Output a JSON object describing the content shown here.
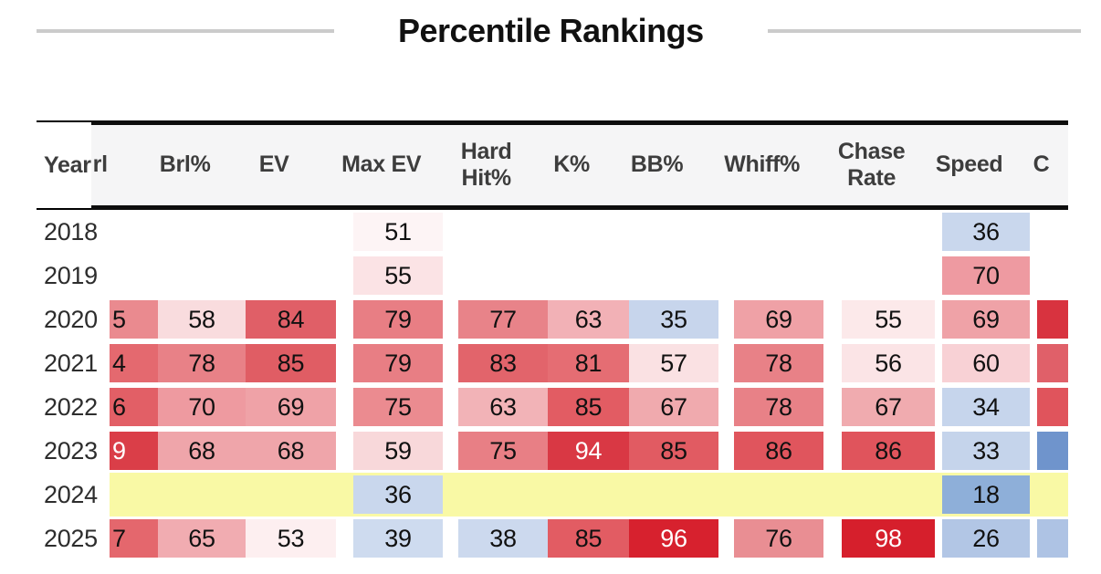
{
  "title": "Percentile Rankings",
  "colors": {
    "header_bg": "#f5f5f6",
    "border": "#0d0d0d",
    "highlight_row_bg": "#f9f9a5",
    "title_rule": "#cbcbcb"
  },
  "table": {
    "columns": [
      {
        "key": "year",
        "label": "Year"
      },
      {
        "key": "brl",
        "label": "rl"
      },
      {
        "key": "brl_pct",
        "label": "Brl%"
      },
      {
        "key": "ev",
        "label": "EV"
      },
      {
        "key": "max_ev",
        "label": "Max EV"
      },
      {
        "key": "hard_hit",
        "label": "Hard Hit%"
      },
      {
        "key": "k_pct",
        "label": "K%"
      },
      {
        "key": "bb_pct",
        "label": "BB%"
      },
      {
        "key": "whiff",
        "label": "Whiff%"
      },
      {
        "key": "chase",
        "label": "Chase Rate"
      },
      {
        "key": "speed",
        "label": "Speed"
      },
      {
        "key": "c",
        "label": "C"
      }
    ],
    "rows": [
      {
        "year": "2018",
        "highlight": false,
        "cells": {
          "max_ev": {
            "v": "51",
            "bg": "#fdf4f5"
          },
          "speed": {
            "v": "36",
            "bg": "#c9d7ed"
          }
        }
      },
      {
        "year": "2019",
        "highlight": false,
        "cells": {
          "max_ev": {
            "v": "55",
            "bg": "#fbe3e5"
          },
          "speed": {
            "v": "70",
            "bg": "#ee9aa1"
          }
        }
      },
      {
        "year": "2020",
        "highlight": false,
        "cells": {
          "brl": {
            "v": "5",
            "bg": "#ea8a8f"
          },
          "brl_pct": {
            "v": "58",
            "bg": "#f9dcde"
          },
          "ev": {
            "v": "84",
            "bg": "#e05f67"
          },
          "max_ev": {
            "v": "79",
            "bg": "#e87e84"
          },
          "hard_hit": {
            "v": "77",
            "bg": "#e88389"
          },
          "k_pct": {
            "v": "63",
            "bg": "#f2b1b6"
          },
          "bb_pct": {
            "v": "35",
            "bg": "#c7d5ec"
          },
          "whiff": {
            "v": "69",
            "bg": "#efa1a6"
          },
          "chase": {
            "v": "55",
            "bg": "#fce9ea"
          },
          "speed": {
            "v": "69",
            "bg": "#efa2a7"
          },
          "c": {
            "v": "",
            "bg": "#d8333f"
          }
        }
      },
      {
        "year": "2021",
        "highlight": false,
        "cells": {
          "brl": {
            "v": "4",
            "bg": "#e4696f"
          },
          "brl_pct": {
            "v": "78",
            "bg": "#e88187"
          },
          "ev": {
            "v": "85",
            "bg": "#e05d64"
          },
          "max_ev": {
            "v": "79",
            "bg": "#e87e84"
          },
          "hard_hit": {
            "v": "83",
            "bg": "#e2646b"
          },
          "k_pct": {
            "v": "81",
            "bg": "#e56d73"
          },
          "bb_pct": {
            "v": "57",
            "bg": "#fae1e3"
          },
          "whiff": {
            "v": "78",
            "bg": "#e88187"
          },
          "chase": {
            "v": "56",
            "bg": "#fbe4e6"
          },
          "speed": {
            "v": "60",
            "bg": "#f8d1d5"
          },
          "c": {
            "v": "",
            "bg": "#e06069"
          }
        }
      },
      {
        "year": "2022",
        "highlight": false,
        "cells": {
          "brl": {
            "v": "6",
            "bg": "#e25f66"
          },
          "brl_pct": {
            "v": "70",
            "bg": "#ee9aa0"
          },
          "ev": {
            "v": "69",
            "bg": "#efa2a7"
          },
          "max_ev": {
            "v": "75",
            "bg": "#eb8b90"
          },
          "hard_hit": {
            "v": "63",
            "bg": "#f2b3b7"
          },
          "k_pct": {
            "v": "85",
            "bg": "#e25c63"
          },
          "bb_pct": {
            "v": "67",
            "bg": "#f0aaae"
          },
          "whiff": {
            "v": "78",
            "bg": "#e88187"
          },
          "chase": {
            "v": "67",
            "bg": "#f0abaf"
          },
          "speed": {
            "v": "34",
            "bg": "#c6d5ec"
          },
          "c": {
            "v": "",
            "bg": "#e0545c"
          }
        }
      },
      {
        "year": "2023",
        "highlight": false,
        "cells": {
          "brl": {
            "v": "9",
            "bg": "#da3e48",
            "fg": "#ffffff"
          },
          "brl_pct": {
            "v": "68",
            "bg": "#efa5aa"
          },
          "ev": {
            "v": "68",
            "bg": "#efa5aa"
          },
          "max_ev": {
            "v": "59",
            "bg": "#f8d8da"
          },
          "hard_hit": {
            "v": "75",
            "bg": "#e87f85"
          },
          "k_pct": {
            "v": "94",
            "bg": "#d93844",
            "fg": "#ffffff"
          },
          "bb_pct": {
            "v": "85",
            "bg": "#e15b62"
          },
          "whiff": {
            "v": "86",
            "bg": "#e0555d"
          },
          "chase": {
            "v": "86",
            "bg": "#e0545c"
          },
          "speed": {
            "v": "33",
            "bg": "#c5d4eb"
          },
          "c": {
            "v": "",
            "bg": "#6f94cc"
          }
        }
      },
      {
        "year": "2024",
        "highlight": true,
        "cells": {
          "max_ev": {
            "v": "36",
            "bg": "#c9d7ed"
          },
          "speed": {
            "v": "18",
            "bg": "#8eafd9"
          }
        }
      },
      {
        "year": "2025",
        "highlight": false,
        "cells": {
          "brl": {
            "v": "7",
            "bg": "#e4676d"
          },
          "brl_pct": {
            "v": "65",
            "bg": "#f1acb1"
          },
          "ev": {
            "v": "53",
            "bg": "#fdeff0"
          },
          "max_ev": {
            "v": "39",
            "bg": "#cedbef"
          },
          "hard_hit": {
            "v": "38",
            "bg": "#ccd9ee"
          },
          "k_pct": {
            "v": "85",
            "bg": "#e25c63"
          },
          "bb_pct": {
            "v": "96",
            "bg": "#d7212e",
            "fg": "#ffffff"
          },
          "whiff": {
            "v": "76",
            "bg": "#e98e93"
          },
          "chase": {
            "v": "98",
            "bg": "#d61f2c",
            "fg": "#ffffff"
          },
          "speed": {
            "v": "26",
            "bg": "#b2c6e5"
          },
          "c": {
            "v": "",
            "bg": "#aec3e4"
          }
        }
      }
    ]
  }
}
